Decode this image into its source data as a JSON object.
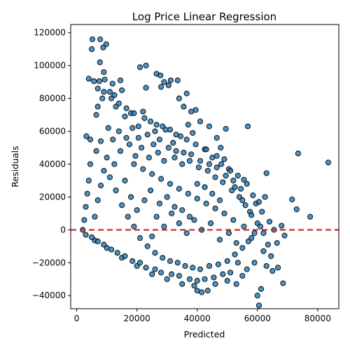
{
  "chart_data": {
    "type": "scatter",
    "title": "Log Price Linear Regression",
    "xlabel": "Predicted",
    "ylabel": "Residuals",
    "xlim": [
      -2000,
      87000
    ],
    "ylim": [
      -48000,
      125000
    ],
    "xticks": [
      0,
      20000,
      40000,
      60000,
      80000
    ],
    "yticks": [
      -40000,
      -20000,
      0,
      20000,
      40000,
      60000,
      80000,
      100000,
      120000
    ],
    "grid": false,
    "marker_color": "#1f77b4",
    "marker_edge_color": "#000000",
    "reference_line": {
      "y": 0,
      "color": "#d62728",
      "style": "dashed"
    },
    "points": [
      [
        5200,
        116000
      ],
      [
        7800,
        116000
      ],
      [
        9800,
        113000
      ],
      [
        5000,
        110000
      ],
      [
        8800,
        111000
      ],
      [
        7700,
        102000
      ],
      [
        9000,
        96000
      ],
      [
        4000,
        92000
      ],
      [
        5700,
        90500
      ],
      [
        7500,
        90500
      ],
      [
        9300,
        91500
      ],
      [
        11900,
        89000
      ],
      [
        14500,
        91000
      ],
      [
        21000,
        99000
      ],
      [
        23000,
        100000
      ],
      [
        26500,
        95000
      ],
      [
        27800,
        94000
      ],
      [
        29000,
        90000
      ],
      [
        31200,
        91000
      ],
      [
        33500,
        91000
      ],
      [
        30500,
        88000
      ],
      [
        28000,
        87000
      ],
      [
        23000,
        86500
      ],
      [
        36500,
        83000
      ],
      [
        35500,
        75000
      ],
      [
        34000,
        80000
      ],
      [
        39500,
        73000
      ],
      [
        38000,
        72000
      ],
      [
        41000,
        66000
      ],
      [
        44000,
        63000
      ],
      [
        46500,
        56000
      ],
      [
        47800,
        50000
      ],
      [
        49500,
        61500
      ],
      [
        56800,
        63000
      ],
      [
        73500,
        46500
      ],
      [
        83500,
        41000
      ],
      [
        77500,
        8000
      ],
      [
        73000,
        12500
      ],
      [
        71500,
        18500
      ],
      [
        68000,
        2500
      ],
      [
        69000,
        -3500
      ],
      [
        68500,
        -32500
      ],
      [
        63000,
        34500
      ],
      [
        60000,
        -40000
      ],
      [
        60500,
        -46000
      ],
      [
        61200,
        -36000
      ],
      [
        63000,
        -22000
      ],
      [
        65000,
        -25000
      ],
      [
        66800,
        -23000
      ],
      [
        62000,
        -13000
      ],
      [
        58000,
        -5000
      ],
      [
        55000,
        -28000
      ],
      [
        53000,
        -33000
      ],
      [
        50000,
        -31000
      ],
      [
        46000,
        -33000
      ],
      [
        41500,
        -38000
      ],
      [
        40000,
        -37000
      ],
      [
        43500,
        -37000
      ],
      [
        39000,
        -34000
      ],
      [
        35000,
        -33000
      ],
      [
        30000,
        -30000
      ],
      [
        25000,
        -27000
      ],
      [
        20000,
        -22000
      ],
      [
        15000,
        -17000
      ],
      [
        10000,
        -11000
      ],
      [
        6000,
        -6500
      ],
      [
        3000,
        -3000
      ],
      [
        2000,
        0
      ],
      [
        2500,
        6000
      ],
      [
        3000,
        14000
      ],
      [
        3500,
        22000
      ],
      [
        4000,
        30000
      ],
      [
        4500,
        40000
      ],
      [
        3200,
        57000
      ],
      [
        4500,
        55000
      ],
      [
        6500,
        70000
      ],
      [
        7000,
        75000
      ],
      [
        8500,
        80000
      ],
      [
        11000,
        84000
      ],
      [
        12500,
        82000
      ],
      [
        15000,
        85000
      ],
      [
        13000,
        75000
      ],
      [
        16000,
        69000
      ],
      [
        18000,
        71000
      ],
      [
        20500,
        63000
      ],
      [
        22000,
        72000
      ],
      [
        24500,
        66000
      ],
      [
        26000,
        60000
      ],
      [
        28500,
        63000
      ],
      [
        31000,
        61000
      ],
      [
        32000,
        53000
      ],
      [
        34500,
        57000
      ],
      [
        37000,
        64000
      ],
      [
        38500,
        59000
      ],
      [
        42500,
        49000
      ],
      [
        45000,
        44000
      ],
      [
        48000,
        40000
      ],
      [
        50500,
        37000
      ],
      [
        52000,
        30000
      ],
      [
        54500,
        25000
      ],
      [
        56500,
        28000
      ],
      [
        58500,
        21000
      ],
      [
        59500,
        16000
      ],
      [
        61500,
        11000
      ],
      [
        64000,
        5000
      ],
      [
        65500,
        0
      ],
      [
        66500,
        -8000
      ],
      [
        57500,
        11000
      ],
      [
        60500,
        17000
      ],
      [
        62500,
        20000
      ],
      [
        55500,
        30500
      ],
      [
        53500,
        33000
      ],
      [
        51000,
        36000
      ],
      [
        49000,
        43000
      ],
      [
        46500,
        45000
      ],
      [
        43000,
        49000
      ],
      [
        39500,
        52000
      ],
      [
        36500,
        55000
      ],
      [
        33000,
        58000
      ],
      [
        29500,
        61000
      ],
      [
        26500,
        64000
      ],
      [
        22500,
        68000
      ],
      [
        19000,
        71000
      ],
      [
        16500,
        74000
      ],
      [
        14000,
        77000
      ],
      [
        11500,
        80000
      ],
      [
        9000,
        84000
      ],
      [
        7000,
        86000
      ],
      [
        10500,
        62000
      ],
      [
        12000,
        55000
      ],
      [
        14500,
        48000
      ],
      [
        17500,
        52000
      ],
      [
        19500,
        45000
      ],
      [
        21500,
        50000
      ],
      [
        24000,
        44000
      ],
      [
        27000,
        47000
      ],
      [
        29000,
        42000
      ],
      [
        32500,
        44000
      ],
      [
        35000,
        40000
      ],
      [
        37500,
        42000
      ],
      [
        40500,
        38000
      ],
      [
        43500,
        36000
      ],
      [
        46000,
        32000
      ],
      [
        48500,
        29000
      ],
      [
        51500,
        24000
      ],
      [
        54000,
        20000
      ],
      [
        56000,
        15000
      ],
      [
        58000,
        9000
      ],
      [
        60000,
        4000
      ],
      [
        62000,
        -2000
      ],
      [
        63500,
        -9000
      ],
      [
        64500,
        -16000
      ],
      [
        59000,
        -20000
      ],
      [
        56500,
        -24000
      ],
      [
        53500,
        -20000
      ],
      [
        51000,
        -26000
      ],
      [
        48500,
        -27000
      ],
      [
        45500,
        -29000
      ],
      [
        42500,
        -30000
      ],
      [
        40000,
        -31000
      ],
      [
        37500,
        -30000
      ],
      [
        34000,
        -28000
      ],
      [
        31500,
        -27000
      ],
      [
        28000,
        -26000
      ],
      [
        26000,
        -24000
      ],
      [
        23000,
        -23000
      ],
      [
        21000,
        -20000
      ],
      [
        18500,
        -19000
      ],
      [
        16000,
        -16000
      ],
      [
        13500,
        -14000
      ],
      [
        11500,
        -12000
      ],
      [
        9000,
        -9000
      ],
      [
        7000,
        -7000
      ],
      [
        5000,
        -4500
      ],
      [
        6000,
        8000
      ],
      [
        7000,
        18000
      ],
      [
        8000,
        27000
      ],
      [
        9000,
        36000
      ],
      [
        10000,
        44000
      ],
      [
        6500,
        48000
      ],
      [
        8000,
        54000
      ],
      [
        11000,
        32000
      ],
      [
        13000,
        24000
      ],
      [
        15000,
        15000
      ],
      [
        17000,
        8000
      ],
      [
        19000,
        2000
      ],
      [
        21000,
        -5000
      ],
      [
        23500,
        -10000
      ],
      [
        26000,
        -14000
      ],
      [
        28500,
        -17000
      ],
      [
        31000,
        -19000
      ],
      [
        33500,
        -20000
      ],
      [
        36000,
        -22000
      ],
      [
        38500,
        -23000
      ],
      [
        41000,
        -24000
      ],
      [
        44000,
        -22000
      ],
      [
        47000,
        -21000
      ],
      [
        50000,
        -19000
      ],
      [
        52500,
        -15000
      ],
      [
        55000,
        -11000
      ],
      [
        57000,
        -7000
      ],
      [
        59000,
        -2000
      ],
      [
        61000,
        2000
      ],
      [
        52000,
        6000
      ],
      [
        49000,
        10000
      ],
      [
        46000,
        13000
      ],
      [
        43000,
        16000
      ],
      [
        40000,
        19000
      ],
      [
        37000,
        22000
      ],
      [
        34000,
        25000
      ],
      [
        31000,
        28000
      ],
      [
        28000,
        31000
      ],
      [
        25000,
        34000
      ],
      [
        22000,
        37000
      ],
      [
        19000,
        40000
      ],
      [
        16000,
        30000
      ],
      [
        18000,
        20000
      ],
      [
        20000,
        12000
      ],
      [
        22500,
        18000
      ],
      [
        24500,
        24000
      ],
      [
        26500,
        8000
      ],
      [
        29000,
        2000
      ],
      [
        31500,
        10000
      ],
      [
        34000,
        4000
      ],
      [
        36500,
        -2000
      ],
      [
        39000,
        6000
      ],
      [
        41500,
        0
      ],
      [
        44500,
        4000
      ],
      [
        47500,
        -6000
      ],
      [
        50500,
        -2000
      ],
      [
        53000,
        -8000
      ],
      [
        55500,
        2000
      ],
      [
        25000,
        -4000
      ],
      [
        27500,
        16000
      ],
      [
        30000,
        20000
      ],
      [
        32500,
        14000
      ],
      [
        35000,
        12000
      ],
      [
        37500,
        8000
      ],
      [
        40000,
        28000
      ],
      [
        42500,
        26000
      ],
      [
        45000,
        22000
      ],
      [
        47500,
        18000
      ],
      [
        12500,
        40000
      ],
      [
        14000,
        60000
      ],
      [
        16500,
        56000
      ],
      [
        18500,
        62000
      ],
      [
        20500,
        56000
      ],
      [
        23500,
        58000
      ],
      [
        25500,
        52000
      ],
      [
        27500,
        55000
      ],
      [
        30500,
        50000
      ],
      [
        33000,
        48000
      ],
      [
        35500,
        47000
      ],
      [
        38000,
        46000
      ],
      [
        41000,
        42000
      ],
      [
        44000,
        40000
      ],
      [
        46500,
        38000
      ],
      [
        49500,
        33000
      ],
      [
        52500,
        26000
      ],
      [
        55000,
        18000
      ]
    ]
  }
}
